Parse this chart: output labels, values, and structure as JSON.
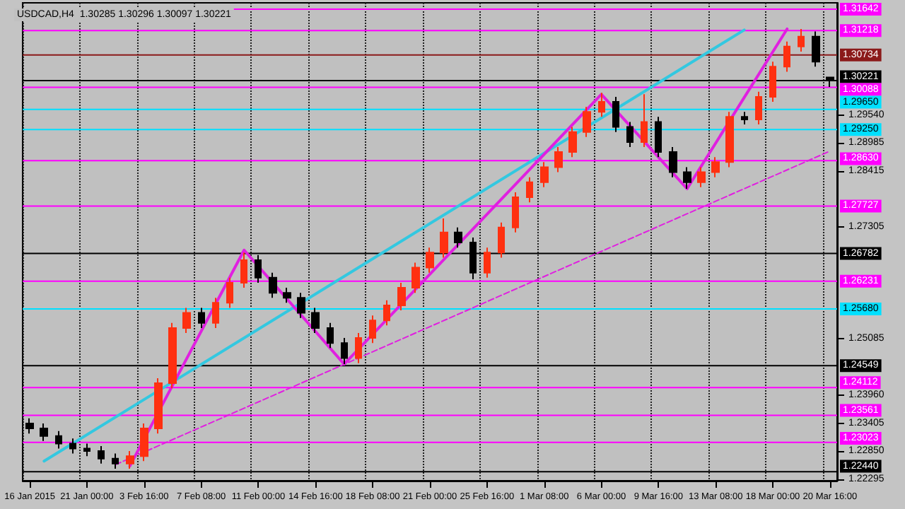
{
  "chart_data": {
    "type": "candlestick",
    "title": "USDCAD,H4  1.30285 1.30296 1.30097 1.30221",
    "categories": [
      "16 Jan 2015",
      null,
      null,
      null,
      "21 Jan 00:00",
      null,
      null,
      null,
      "3 Feb 16:00",
      null,
      null,
      null,
      "7 Feb 08:00",
      null,
      null,
      null,
      "11 Feb 00:00",
      null,
      null,
      null,
      "14 Feb 16:00",
      null,
      null,
      null,
      "18 Feb 08:00",
      null,
      null,
      null,
      "21 Feb 00:00",
      null,
      null,
      null,
      "25 Feb 16:00",
      null,
      null,
      null,
      "1 Mar 08:00",
      null,
      null,
      null,
      "6 Mar 00:00",
      null,
      null,
      null,
      "9 Mar 16:00",
      null,
      null,
      null,
      "13 Mar 08:00",
      null,
      null,
      null,
      "18 Mar 00:00",
      null,
      null,
      null,
      "20 Mar 16:00"
    ],
    "ohlc": [
      [
        1.234,
        1.235,
        1.232,
        1.233
      ],
      [
        1.233,
        1.234,
        1.2305,
        1.2315
      ],
      [
        1.2315,
        1.2325,
        1.229,
        1.23
      ],
      [
        1.23,
        1.231,
        1.228,
        1.229
      ],
      [
        1.229,
        1.23,
        1.2275,
        1.2285
      ],
      [
        1.2285,
        1.2295,
        1.226,
        1.227
      ],
      [
        1.227,
        1.228,
        1.225,
        1.226
      ],
      [
        1.226,
        1.2285,
        1.225,
        1.2275
      ],
      [
        1.2275,
        1.234,
        1.2265,
        1.233
      ],
      [
        1.233,
        1.243,
        1.232,
        1.242
      ],
      [
        1.242,
        1.254,
        1.241,
        1.253
      ],
      [
        1.253,
        1.257,
        1.252,
        1.256
      ],
      [
        1.256,
        1.257,
        1.253,
        1.254
      ],
      [
        1.254,
        1.259,
        1.253,
        1.258
      ],
      [
        1.258,
        1.263,
        1.257,
        1.262
      ],
      [
        1.262,
        1.268,
        1.261,
        1.2665
      ],
      [
        1.2665,
        1.2675,
        1.262,
        1.263
      ],
      [
        1.263,
        1.264,
        1.259,
        1.26
      ],
      [
        1.26,
        1.261,
        1.258,
        1.259
      ],
      [
        1.259,
        1.26,
        1.255,
        1.256
      ],
      [
        1.256,
        1.257,
        1.252,
        1.253
      ],
      [
        1.253,
        1.254,
        1.249,
        1.25
      ],
      [
        1.25,
        1.251,
        1.2458,
        1.247
      ],
      [
        1.247,
        1.252,
        1.246,
        1.251
      ],
      [
        1.251,
        1.2555,
        1.25,
        1.2545
      ],
      [
        1.2545,
        1.2585,
        1.2535,
        1.2575
      ],
      [
        1.2575,
        1.262,
        1.2565,
        1.261
      ],
      [
        1.261,
        1.266,
        1.26,
        1.265
      ],
      [
        1.265,
        1.269,
        1.264,
        1.268
      ],
      [
        1.268,
        1.2748,
        1.267,
        1.272
      ],
      [
        1.272,
        1.273,
        1.269,
        1.27
      ],
      [
        1.27,
        1.271,
        1.2627,
        1.264
      ],
      [
        1.264,
        1.269,
        1.263,
        1.268
      ],
      [
        1.268,
        1.274,
        1.267,
        1.273
      ],
      [
        1.273,
        1.28,
        1.272,
        1.279
      ],
      [
        1.279,
        1.283,
        1.278,
        1.282
      ],
      [
        1.282,
        1.286,
        1.281,
        1.285
      ],
      [
        1.285,
        1.289,
        1.284,
        1.288
      ],
      [
        1.288,
        1.293,
        1.287,
        1.292
      ],
      [
        1.292,
        1.297,
        1.291,
        1.296
      ],
      [
        1.296,
        1.2998,
        1.295,
        1.298
      ],
      [
        1.298,
        1.299,
        1.292,
        1.293
      ],
      [
        1.293,
        1.294,
        1.289,
        1.29
      ],
      [
        1.29,
        1.2995,
        1.289,
        1.294
      ],
      [
        1.294,
        1.295,
        1.287,
        1.288
      ],
      [
        1.288,
        1.289,
        1.283,
        1.284
      ],
      [
        1.284,
        1.285,
        1.2807,
        1.282
      ],
      [
        1.282,
        1.285,
        1.281,
        1.284
      ],
      [
        1.284,
        1.287,
        1.283,
        1.286
      ],
      [
        1.286,
        1.296,
        1.285,
        1.295
      ],
      [
        1.295,
        1.296,
        1.2935,
        1.2945
      ],
      [
        1.2945,
        1.3,
        1.2935,
        1.299
      ],
      [
        1.299,
        1.306,
        1.298,
        1.305
      ],
      [
        1.305,
        1.31,
        1.304,
        1.309
      ],
      [
        1.309,
        1.3125,
        1.308,
        1.311
      ],
      [
        1.311,
        1.312,
        1.305,
        1.306
      ],
      [
        1.30285,
        1.30296,
        1.30097,
        1.30221
      ]
    ],
    "colors": [
      "#000000",
      "#000000",
      "#000000",
      "#000000",
      "#000000",
      "#000000",
      "#000000",
      "#ff3010",
      "#ff3010",
      "#ff3010",
      "#ff3010",
      "#ff3010",
      "#000000",
      "#ff3010",
      "#ff3010",
      "#ff3010",
      "#000000",
      "#000000",
      "#000000",
      "#000000",
      "#000000",
      "#000000",
      "#000000",
      "#ff3010",
      "#ff3010",
      "#ff3010",
      "#ff3010",
      "#ff3010",
      "#ff3010",
      "#ff3010",
      "#000000",
      "#000000",
      "#ff3010",
      "#ff3010",
      "#ff3010",
      "#ff3010",
      "#ff3010",
      "#ff3010",
      "#ff3010",
      "#ff3010",
      "#ff3010",
      "#000000",
      "#000000",
      "#ff3010",
      "#000000",
      "#000000",
      "#000000",
      "#ff3010",
      "#ff3010",
      "#ff3010",
      "#000000",
      "#ff3010",
      "#ff3010",
      "#ff3010",
      "#ff3010",
      "#000000",
      "#000000"
    ],
    "series": [
      {
        "type": "line",
        "color": "#33c8e0",
        "line_style": "solid",
        "values": [
          null,
          1.2265,
          null,
          null,
          null,
          null,
          null,
          null,
          null,
          null,
          null,
          null,
          null,
          null,
          null,
          null,
          null,
          null,
          null,
          null,
          null,
          null,
          null,
          null,
          null,
          null,
          null,
          null,
          null,
          null,
          null,
          null,
          null,
          null,
          null,
          null,
          null,
          null,
          null,
          null,
          null,
          null,
          null,
          null,
          null,
          null,
          null,
          null,
          null,
          null,
          1.3123,
          null,
          null,
          null,
          null,
          null,
          null
        ]
      },
      {
        "type": "line",
        "color": "#e020e0",
        "line_style": "solid",
        "values": [
          null,
          null,
          null,
          null,
          null,
          null,
          null,
          1.2255,
          null,
          null,
          null,
          null,
          null,
          null,
          null,
          1.2685,
          null,
          null,
          null,
          null,
          null,
          null,
          1.2458,
          null,
          null,
          null,
          null,
          null,
          null,
          null,
          null,
          null,
          null,
          null,
          null,
          null,
          null,
          null,
          null,
          null,
          1.2995,
          null,
          null,
          null,
          null,
          null,
          1.2807,
          null,
          null,
          null,
          null,
          null,
          null,
          1.3125,
          null,
          null,
          null
        ]
      },
      {
        "type": "line",
        "color": "#e020e0",
        "line_style": "dashed",
        "values": [
          null,
          null,
          null,
          null,
          null,
          null,
          1.2258,
          null,
          null,
          null,
          null,
          null,
          null,
          null,
          null,
          null,
          null,
          null,
          null,
          null,
          null,
          null,
          null,
          null,
          null,
          null,
          null,
          null,
          null,
          null,
          null,
          null,
          null,
          null,
          null,
          null,
          null,
          null,
          null,
          null,
          null,
          null,
          null,
          null,
          null,
          null,
          null,
          null,
          null,
          null,
          null,
          null,
          null,
          null,
          null,
          null,
          1.2882
        ]
      }
    ],
    "ylim": [
      1.2226,
      1.3177
    ],
    "yticks": [
      1.22295,
      {
        "value": 1.2285,
        "label": "1.22850"
      },
      1.23405,
      {
        "value": 1.2396,
        "label": "1.23960"
      },
      1.25085,
      1.27305,
      1.28415,
      1.28985,
      {
        "value": 1.2954,
        "label": "1.29540"
      }
    ],
    "grid": "x",
    "ref_lines": [
      {
        "axis": "y",
        "value": 1.31642,
        "label": "1.31642",
        "color": "#ff00ff"
      },
      {
        "axis": "y",
        "value": 1.31218,
        "label": "1.31218",
        "color": "#ff00ff"
      },
      {
        "axis": "y",
        "value": 1.30734,
        "label": "1.30734",
        "color": "#8b1a1a"
      },
      {
        "axis": "y",
        "value": 1.30221,
        "label": "1.30221",
        "color": "#000000"
      },
      {
        "axis": "y",
        "value": 1.30088,
        "label": "1.30088",
        "color": "#ff00ff"
      },
      {
        "axis": "y",
        "value": 1.2965,
        "label": "1.29650",
        "color": "#00e0ff"
      },
      {
        "axis": "y",
        "value": 1.2925,
        "label": "1.29250",
        "color": "#00e0ff"
      },
      {
        "axis": "y",
        "value": 1.2863,
        "label": "1.28630",
        "color": "#ff00ff"
      },
      {
        "axis": "y",
        "value": 1.27727,
        "label": "1.27727",
        "color": "#ff00ff"
      },
      {
        "axis": "y",
        "value": 1.26782,
        "label": "1.26782",
        "color": "#000000"
      },
      {
        "axis": "y",
        "value": 1.26231,
        "label": "1.26231",
        "color": "#ff00ff"
      },
      {
        "axis": "y",
        "value": 1.2568,
        "label": "1.25680",
        "color": "#00e0ff"
      },
      {
        "axis": "y",
        "value": 1.24549,
        "label": "1.24549",
        "color": "#000000"
      },
      {
        "axis": "y",
        "value": 1.24112,
        "label": "1.24112",
        "color": "#ff00ff"
      },
      {
        "axis": "y",
        "value": 1.23561,
        "label": "1.23561",
        "color": "#ff00ff"
      },
      {
        "axis": "y",
        "value": 1.23023,
        "label": "1.23023",
        "color": "#ff00ff"
      },
      {
        "axis": "y",
        "value": 1.2244,
        "label": "1.22440",
        "color": "#000000"
      }
    ]
  }
}
